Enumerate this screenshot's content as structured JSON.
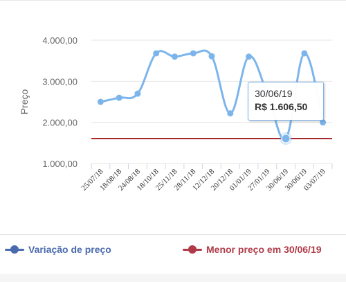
{
  "chart_data": {
    "type": "line",
    "ylabel": "Preço",
    "ylim": [
      1000,
      4000
    ],
    "yticks": [
      "4.000,00",
      "3.000,00",
      "2.000,00",
      "1.000,00"
    ],
    "ytick_values": [
      4000,
      3000,
      2000,
      1000
    ],
    "categories": [
      "25/07/18",
      "18/08/18",
      "24/08/18",
      "18/10/18",
      "25/11/18",
      "28/11/18",
      "12/12/18",
      "20/12/18",
      "01/01/19",
      "27/01/19",
      "30/06/19",
      "30/06/19",
      "03/07/19"
    ],
    "series": [
      {
        "name": "Variação de preço",
        "color": "#7cb5ec",
        "legend_color": "#4a6aae",
        "values": [
          2500,
          2600,
          2700,
          3680,
          3600,
          3680,
          3610,
          2220,
          3600,
          2700,
          1606.5,
          3680,
          2000
        ]
      }
    ],
    "reference_line": {
      "name": "Menor preço em 30/06/19",
      "value": 1606.5,
      "color": "#a52a2a",
      "legend_color": "#b03a48"
    },
    "grid": true,
    "legend_position": "bottom"
  },
  "tooltip": {
    "date": "30/06/19",
    "price": "R$ 1.606,50"
  },
  "legend": {
    "series_label": "Variação de preço",
    "reference_label": "Menor preço em 30/06/19"
  },
  "colors": {
    "series_legend": "#4a6aae",
    "reference_legend": "#b03a48"
  }
}
